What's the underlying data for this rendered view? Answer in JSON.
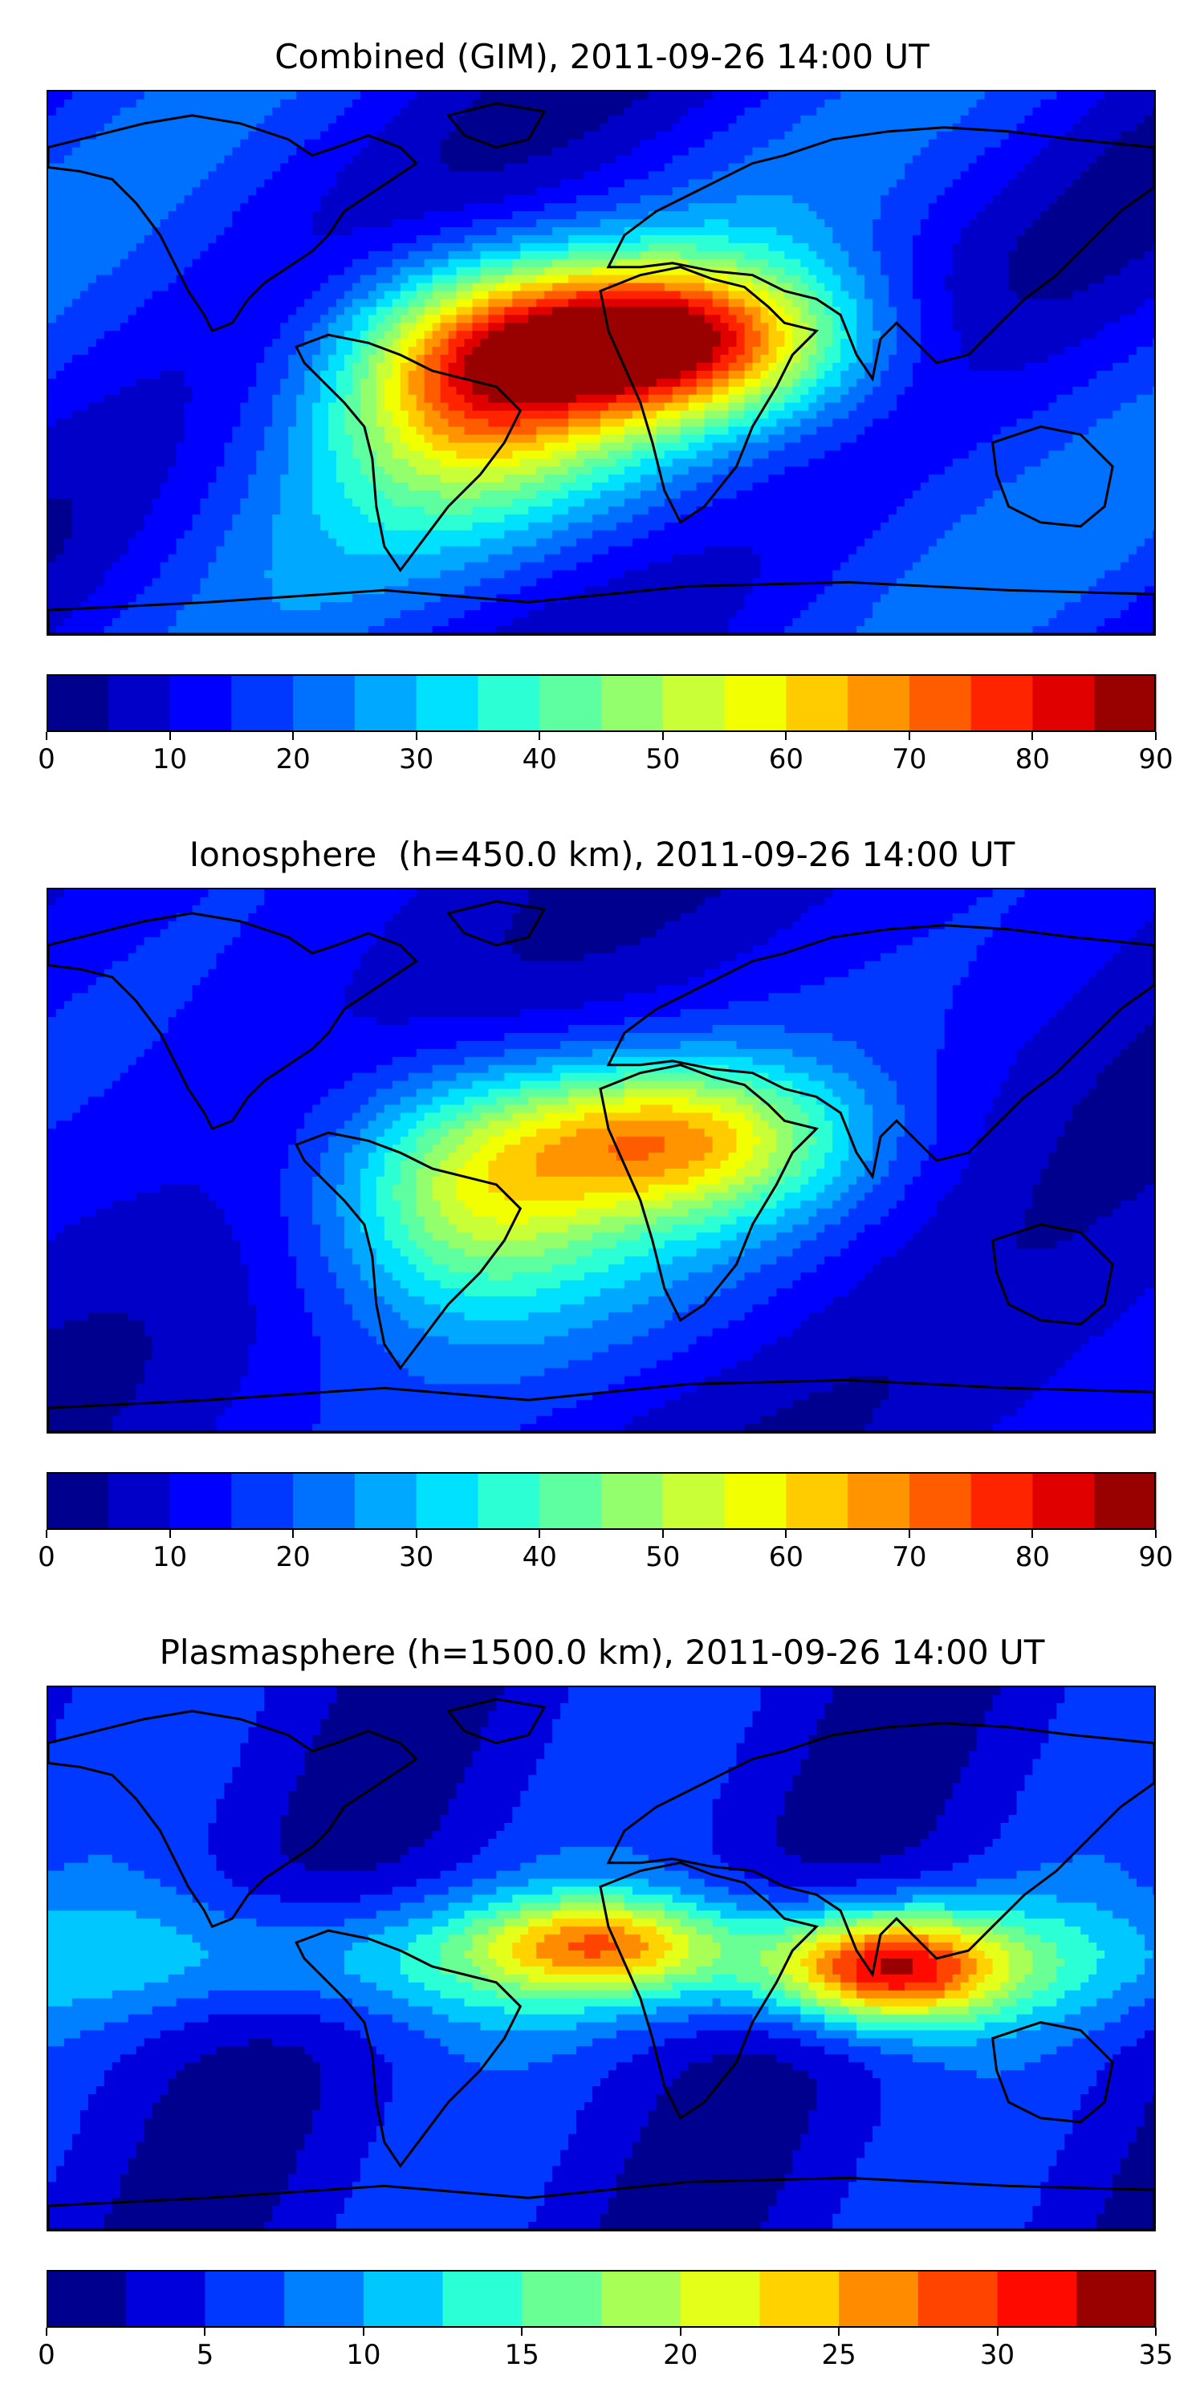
{
  "colors": {
    "jet18": [
      "#00008f",
      "#0000c8",
      "#0000ff",
      "#0038ff",
      "#0070ff",
      "#00a8ff",
      "#00e0ff",
      "#2cffd4",
      "#5effa0",
      "#94ff6c",
      "#c8ff36",
      "#f2ff00",
      "#ffcc00",
      "#ff9400",
      "#ff5c00",
      "#ff2400",
      "#e00000",
      "#990000"
    ],
    "jet14": [
      "#00008f",
      "#0000dd",
      "#0038ff",
      "#0080ff",
      "#00c8ff",
      "#2affd6",
      "#6aff94",
      "#a8ff56",
      "#e4ff1a",
      "#ffd200",
      "#ff8c00",
      "#ff4400",
      "#ff0a00",
      "#990000"
    ],
    "coastline": "#000000"
  },
  "panels": [
    {
      "title": "Combined (GIM), 2011-09-26 14:00 UT",
      "field": {
        "cbar": "jet18",
        "levels": [
          0,
          5,
          10,
          15,
          20,
          25,
          30,
          35,
          40,
          45,
          50,
          55,
          60,
          65,
          70,
          75,
          80,
          85,
          90
        ],
        "base": 12
      },
      "colorbar": {
        "ticks": [
          "0",
          "10",
          "20",
          "30",
          "40",
          "50",
          "60",
          "70",
          "80",
          "90"
        ],
        "min": 0,
        "max": 90
      }
    },
    {
      "title": "Ionosphere  (h=450.0 km), 2011-09-26 14:00 UT",
      "field": {
        "cbar": "jet18",
        "levels": [
          0,
          5,
          10,
          15,
          20,
          25,
          30,
          35,
          40,
          45,
          50,
          55,
          60,
          65,
          70,
          75,
          80,
          85,
          90
        ],
        "base": 9
      },
      "colorbar": {
        "ticks": [
          "0",
          "10",
          "20",
          "30",
          "40",
          "50",
          "60",
          "70",
          "80",
          "90"
        ],
        "min": 0,
        "max": 90
      }
    },
    {
      "title": "Plasmasphere (h=1500.0 km), 2011-09-26 14:00 UT",
      "field": {
        "cbar": "jet14",
        "levels": [
          0,
          2.5,
          5,
          7.5,
          10,
          12.5,
          15,
          17.5,
          20,
          22.5,
          25,
          27.5,
          30,
          32.5,
          35
        ],
        "base": 4
      },
      "colorbar": {
        "ticks": [
          "0",
          "5",
          "10",
          "15",
          "20",
          "25",
          "30",
          "35"
        ],
        "min": 0,
        "max": 35
      }
    }
  ]
}
